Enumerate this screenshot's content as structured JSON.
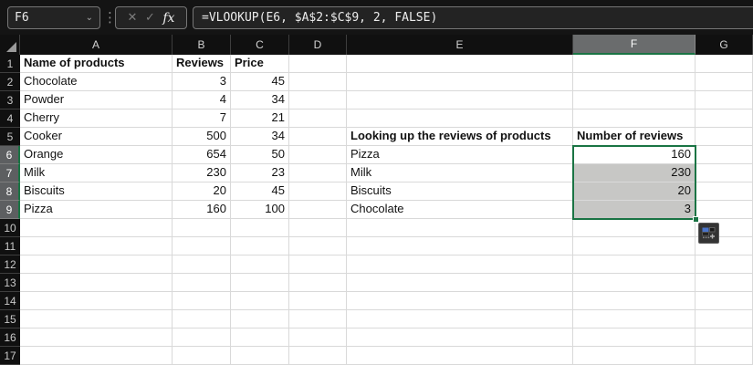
{
  "formula_bar": {
    "name_box": "F6",
    "name_box_dropdown": "⌄",
    "handle_dots": "⋮",
    "cancel_label": "✕",
    "enter_label": "✓",
    "fx_label": "fx",
    "formula": "=VLOOKUP(E6, $A$2:$C$9, 2, FALSE)"
  },
  "grid": {
    "columns": [
      "A",
      "B",
      "C",
      "D",
      "E",
      "F",
      "G"
    ],
    "row_labels": [
      "1",
      "2",
      "3",
      "4",
      "5",
      "6",
      "7",
      "8",
      "9",
      "10",
      "11",
      "12",
      "13",
      "14",
      "15",
      "16",
      "17"
    ],
    "selected_column": "F",
    "selected_rows": [
      6,
      7,
      8,
      9
    ],
    "active_cell": "F6",
    "selected_range": "F6:F9",
    "fill_cells": [
      "F7",
      "F8",
      "F9"
    ],
    "cells": {
      "A1": {
        "t": "Name of products",
        "b": 1
      },
      "B1": {
        "t": "Reviews",
        "b": 1
      },
      "C1": {
        "t": "Price",
        "b": 1
      },
      "A2": {
        "t": "Chocolate"
      },
      "B2": {
        "t": "3",
        "n": 1
      },
      "C2": {
        "t": "45",
        "n": 1
      },
      "A3": {
        "t": "Powder"
      },
      "B3": {
        "t": "4",
        "n": 1
      },
      "C3": {
        "t": "34",
        "n": 1
      },
      "A4": {
        "t": "Cherry"
      },
      "B4": {
        "t": "7",
        "n": 1
      },
      "C4": {
        "t": "21",
        "n": 1
      },
      "A5": {
        "t": "Cooker"
      },
      "B5": {
        "t": "500",
        "n": 1
      },
      "C5": {
        "t": "34",
        "n": 1
      },
      "A6": {
        "t": "Orange"
      },
      "B6": {
        "t": "654",
        "n": 1
      },
      "C6": {
        "t": "50",
        "n": 1
      },
      "A7": {
        "t": "Milk"
      },
      "B7": {
        "t": "230",
        "n": 1
      },
      "C7": {
        "t": "23",
        "n": 1
      },
      "A8": {
        "t": "Biscuits"
      },
      "B8": {
        "t": "20",
        "n": 1
      },
      "C8": {
        "t": "45",
        "n": 1
      },
      "A9": {
        "t": "Pizza"
      },
      "B9": {
        "t": "160",
        "n": 1
      },
      "C9": {
        "t": "100",
        "n": 1
      },
      "E5": {
        "t": "Looking up the reviews of products",
        "b": 1
      },
      "F5": {
        "t": "Number of reviews",
        "b": 1
      },
      "E6": {
        "t": "Pizza"
      },
      "F6": {
        "t": "160",
        "n": 1
      },
      "E7": {
        "t": "Milk"
      },
      "F7": {
        "t": "230",
        "n": 1
      },
      "E8": {
        "t": "Biscuits"
      },
      "F8": {
        "t": "20",
        "n": 1
      },
      "E9": {
        "t": "Chocolate"
      },
      "F9": {
        "t": "3",
        "n": 1
      }
    }
  },
  "colors": {
    "accent_green": "#1a7444",
    "selection_fill": "#c7c7c5",
    "header_selected_gray": "#6a6c6d",
    "autofill_icon_blue": "#4a74c9"
  }
}
